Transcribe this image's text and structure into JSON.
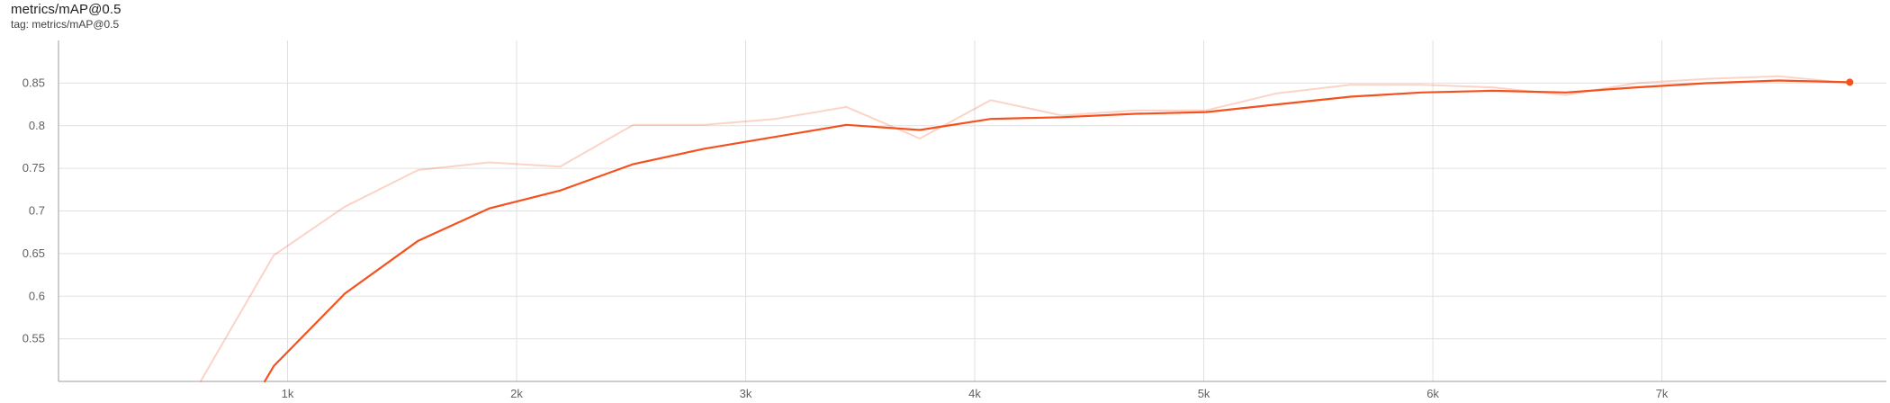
{
  "header": {
    "title": "metrics/mAP@0.5",
    "tag": "tag: metrics/mAP@0.5"
  },
  "colors": {
    "smoothed": "#f4511e",
    "raw": "#f4511e",
    "grid": "#e0e0e0",
    "axis": "#9e9e9e"
  },
  "chart_data": {
    "type": "line",
    "title": "metrics/mAP@0.5",
    "xlabel": "",
    "ylabel": "",
    "xlim": [
      0,
      7980
    ],
    "ylim": [
      0.5,
      0.9
    ],
    "grid": true,
    "x_ticks": [
      {
        "value": 1000,
        "label": "1k"
      },
      {
        "value": 2000,
        "label": "2k"
      },
      {
        "value": 3000,
        "label": "3k"
      },
      {
        "value": 4000,
        "label": "4k"
      },
      {
        "value": 5000,
        "label": "5k"
      },
      {
        "value": 6000,
        "label": "6k"
      },
      {
        "value": 7000,
        "label": "7k"
      }
    ],
    "y_ticks": [
      {
        "value": 0.55,
        "label": "0.55"
      },
      {
        "value": 0.6,
        "label": "0.6"
      },
      {
        "value": 0.65,
        "label": "0.65"
      },
      {
        "value": 0.7,
        "label": "0.7"
      },
      {
        "value": 0.75,
        "label": "0.75"
      },
      {
        "value": 0.8,
        "label": "0.8"
      },
      {
        "value": 0.85,
        "label": "0.85"
      }
    ],
    "series": [
      {
        "role": "raw",
        "opacity": 0.25,
        "x": [
          620,
          940,
          1250,
          1570,
          1880,
          2190,
          2510,
          2820,
          3130,
          3440,
          3760,
          4070,
          4380,
          4700,
          5010,
          5320,
          5640,
          5950,
          6260,
          6580,
          6890,
          7200,
          7510,
          7820
        ],
        "y": [
          0.5,
          0.648,
          0.705,
          0.748,
          0.757,
          0.752,
          0.801,
          0.801,
          0.808,
          0.822,
          0.785,
          0.83,
          0.812,
          0.818,
          0.818,
          0.838,
          0.848,
          0.848,
          0.845,
          0.836,
          0.85,
          0.855,
          0.858,
          0.85
        ]
      },
      {
        "role": "smoothed",
        "opacity": 1,
        "x": [
          900,
          940,
          1250,
          1570,
          1880,
          2190,
          2510,
          2820,
          3130,
          3440,
          3760,
          4070,
          4380,
          4700,
          5010,
          5320,
          5640,
          5950,
          6260,
          6580,
          6890,
          7200,
          7510,
          7820
        ],
        "y": [
          0.5,
          0.518,
          0.603,
          0.665,
          0.703,
          0.724,
          0.755,
          0.773,
          0.787,
          0.801,
          0.795,
          0.808,
          0.81,
          0.814,
          0.816,
          0.825,
          0.834,
          0.839,
          0.841,
          0.839,
          0.845,
          0.85,
          0.853,
          0.851
        ]
      }
    ]
  }
}
